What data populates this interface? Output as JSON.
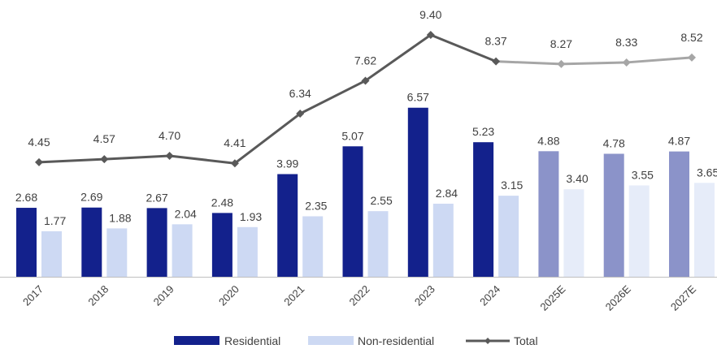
{
  "chart_data": {
    "type": "bar",
    "categories": [
      "2017",
      "2018",
      "2019",
      "2020",
      "2021",
      "2022",
      "2023",
      "2024",
      "2025E",
      "2026E",
      "2027E"
    ],
    "series": [
      {
        "name": "Residential",
        "type": "bar",
        "values": [
          2.68,
          2.69,
          2.67,
          2.48,
          3.99,
          5.07,
          6.57,
          5.23,
          4.88,
          4.78,
          4.87
        ]
      },
      {
        "name": "Non-residential",
        "type": "bar",
        "values": [
          1.77,
          1.88,
          2.04,
          1.93,
          2.35,
          2.55,
          2.84,
          3.15,
          3.4,
          3.55,
          3.65
        ]
      },
      {
        "name": "Total",
        "type": "line",
        "values": [
          4.45,
          4.57,
          4.7,
          4.41,
          6.34,
          7.62,
          9.4,
          8.37,
          8.27,
          8.33,
          8.52
        ]
      }
    ],
    "value_labels": {
      "residential": [
        "2.68",
        "2.69",
        "2.67",
        "2.48",
        "3.99",
        "5.07",
        "6.57",
        "5.23",
        "4.88",
        "4.78",
        "4.87"
      ],
      "non_residential": [
        "1.77",
        "1.88",
        "2.04",
        "1.93",
        "2.35",
        "2.55",
        "2.84",
        "3.15",
        "3.40",
        "3.55",
        "3.65"
      ],
      "total": [
        "4.45",
        "4.57",
        "4.70",
        "4.41",
        "6.34",
        "7.62",
        "9.40",
        "8.37",
        "8.27",
        "8.33",
        "8.52"
      ]
    },
    "estimate_categories": [
      "2025E",
      "2026E",
      "2027E"
    ],
    "legend": {
      "position": "bottom",
      "entries": [
        "Residential",
        "Non-residential",
        "Total"
      ]
    },
    "colors": {
      "residential": "#13218c",
      "non_residential": "#cdd9f3",
      "residential_estimate": "#8b93c9",
      "non_residential_estimate": "#e6ecf9",
      "total": "#595959",
      "total_estimate": "#a6a6a6",
      "axis": "#bfbfbf"
    },
    "xlabel": "",
    "ylabel": "",
    "grid": false
  }
}
